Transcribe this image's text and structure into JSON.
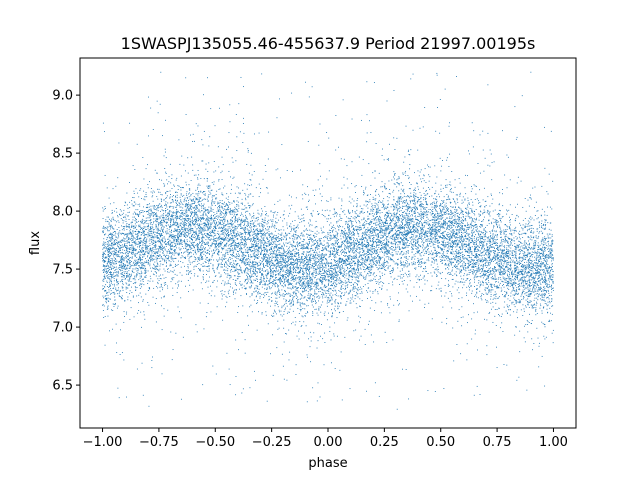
{
  "chart_data": {
    "type": "scatter",
    "title": "1SWASPJ135055.46-455637.9 Period 21997.00195s",
    "xlabel": "phase",
    "ylabel": "flux",
    "xlim": [
      -1.1,
      1.1
    ],
    "ylim": [
      6.13,
      9.32
    ],
    "x_ticks": [
      -1.0,
      -0.75,
      -0.5,
      -0.25,
      0.0,
      0.25,
      0.5,
      0.75,
      1.0
    ],
    "x_tick_labels": [
      "−1.00",
      "−0.75",
      "−0.50",
      "−0.25",
      "0.00",
      "0.25",
      "0.50",
      "0.75",
      "1.00"
    ],
    "y_ticks": [
      6.5,
      7.0,
      7.5,
      8.0,
      8.5,
      9.0
    ],
    "y_tick_labels": [
      "6.5",
      "7.0",
      "7.5",
      "8.0",
      "8.5",
      "9.0"
    ],
    "grid": false,
    "color": "#1f77b4",
    "phase_range": [
      -1.0,
      1.0
    ],
    "approx_point_count": 14000,
    "flux_mean": 7.68,
    "flux_amplitude": 0.17,
    "flux_max_phase": [
      -0.6,
      0.4
    ],
    "flux_min_phase": [
      -0.1,
      0.9
    ],
    "flux_scatter_sd": 0.2,
    "flux_min": 6.27,
    "flux_max": 9.2
  }
}
